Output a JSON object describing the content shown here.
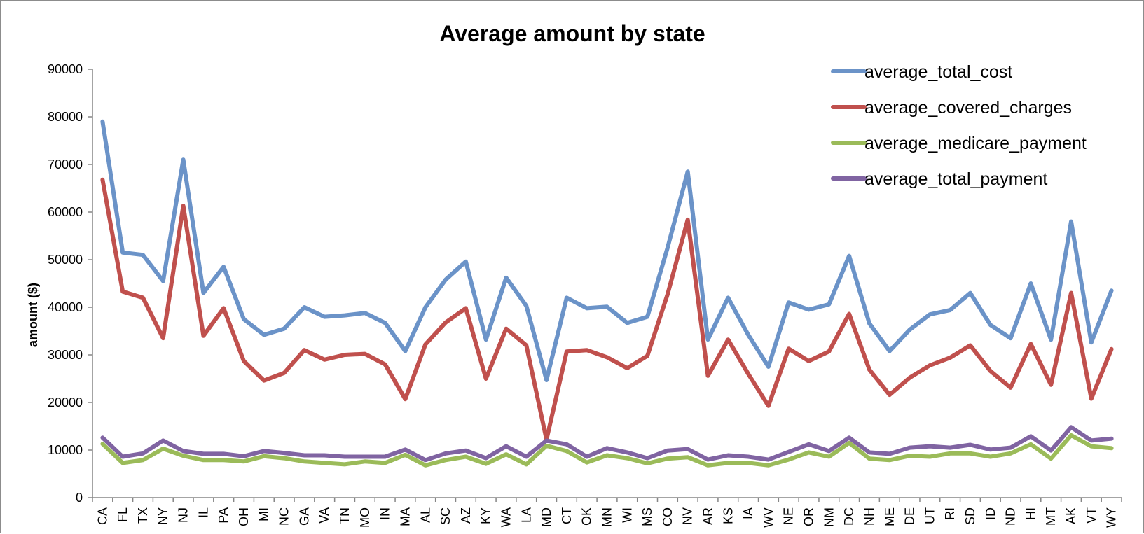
{
  "chart_data": {
    "type": "line",
    "title": "Average amount by state",
    "xlabel": "",
    "ylabel": "amount ($)",
    "ylim": [
      0,
      90000
    ],
    "yticks": [
      0,
      10000,
      20000,
      30000,
      40000,
      50000,
      60000,
      70000,
      80000,
      90000
    ],
    "grid": false,
    "legend_position": "top-right",
    "categories": [
      "CA",
      "FL",
      "TX",
      "NY",
      "NJ",
      "IL",
      "PA",
      "OH",
      "MI",
      "NC",
      "GA",
      "VA",
      "TN",
      "MO",
      "IN",
      "MA",
      "AL",
      "SC",
      "AZ",
      "KY",
      "WA",
      "LA",
      "MD",
      "CT",
      "OK",
      "MN",
      "WI",
      "MS",
      "CO",
      "NV",
      "AR",
      "KS",
      "IA",
      "WV",
      "NE",
      "OR",
      "NM",
      "DC",
      "NH",
      "ME",
      "DE",
      "UT",
      "RI",
      "SD",
      "ID",
      "ND",
      "HI",
      "MT",
      "AK",
      "VT",
      "WY"
    ],
    "series": [
      {
        "name": "average_total_cost",
        "color": "#6b93c8",
        "values": [
          79000,
          51500,
          51000,
          45500,
          71000,
          43000,
          48500,
          37500,
          34200,
          35500,
          40000,
          38000,
          38300,
          38800,
          36700,
          30800,
          40000,
          45800,
          49600,
          33200,
          46200,
          40300,
          24700,
          42000,
          39800,
          40100,
          36700,
          38000,
          52500,
          68500,
          33200,
          42000,
          34200,
          27500,
          41000,
          39500,
          40600,
          50800,
          36600,
          30800,
          35300,
          38500,
          39400,
          43000,
          36300,
          33500,
          45000,
          33200,
          58000,
          32600,
          43500
        ]
      },
      {
        "name": "average_covered_charges",
        "color": "#c0504d",
        "values": [
          66800,
          43300,
          42000,
          33500,
          61300,
          34000,
          39800,
          28700,
          24600,
          26200,
          31000,
          29000,
          30000,
          30200,
          28000,
          20700,
          32200,
          36800,
          39800,
          25000,
          35500,
          32000,
          12200,
          30700,
          31000,
          29500,
          27200,
          29800,
          42700,
          58400,
          25600,
          33200,
          26000,
          19300,
          31300,
          28700,
          30700,
          38600,
          26900,
          21600,
          25200,
          27800,
          29400,
          32000,
          26600,
          23100,
          32300,
          23700,
          43000,
          20800,
          31200
        ]
      },
      {
        "name": "average_medicare_payment",
        "color": "#9bbb59",
        "values": [
          11300,
          7300,
          7900,
          10300,
          8800,
          7900,
          7900,
          7600,
          8700,
          8300,
          7600,
          7300,
          7000,
          7600,
          7300,
          9000,
          6800,
          7900,
          8600,
          7100,
          9100,
          7000,
          10900,
          9800,
          7400,
          8900,
          8300,
          7200,
          8200,
          8500,
          6800,
          7300,
          7300,
          6800,
          8000,
          9500,
          8600,
          11500,
          8200,
          7900,
          8800,
          8600,
          9300,
          9300,
          8600,
          9300,
          11200,
          8200,
          13100,
          10800,
          10400
        ]
      },
      {
        "name": "average_total_payment",
        "color": "#8064a2",
        "values": [
          12600,
          8600,
          9300,
          12000,
          9800,
          9200,
          9200,
          8700,
          9800,
          9400,
          8900,
          8900,
          8600,
          8600,
          8600,
          10100,
          7900,
          9300,
          9900,
          8300,
          10800,
          8600,
          12000,
          11200,
          8600,
          10400,
          9500,
          8300,
          9900,
          10200,
          8000,
          8900,
          8600,
          8000,
          9600,
          11200,
          9800,
          12600,
          9500,
          9200,
          10500,
          10800,
          10500,
          11100,
          10100,
          10500,
          12900,
          9900,
          14800,
          12000,
          12400
        ]
      }
    ]
  }
}
